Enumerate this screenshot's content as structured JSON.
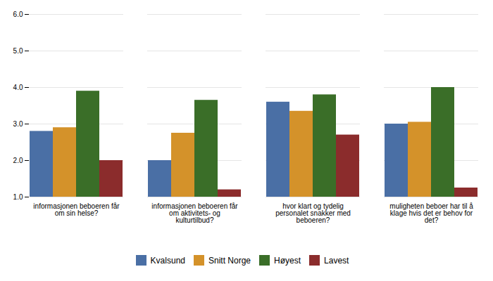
{
  "chart_data": {
    "type": "bar",
    "categories": [
      "informasjonen beboeren får\nom sin helse?",
      "informasjonen beboeren får\nom aktivitets- og\nkulturtilbud?",
      "hvor klart og tydelig\npersonalet snakker med\nbeboeren?",
      "muligheten beboer har til å\nklage hvis det er behov for\ndet?"
    ],
    "series": [
      {
        "name": "Kvalsund",
        "color": "#4a6fa5",
        "values": [
          2.8,
          2.0,
          3.6,
          3.0
        ]
      },
      {
        "name": "Snitt Norge",
        "color": "#d4922a",
        "values": [
          2.9,
          2.75,
          3.35,
          3.05
        ]
      },
      {
        "name": "Høyest",
        "color": "#3a6e28",
        "values": [
          3.9,
          3.65,
          3.8,
          4.0
        ]
      },
      {
        "name": "Lavest",
        "color": "#8b2c2c",
        "values": [
          2.0,
          1.2,
          2.7,
          1.25
        ]
      }
    ],
    "ylim": [
      1,
      6
    ],
    "yticks": [
      1,
      2,
      3,
      4,
      5,
      6
    ],
    "grid": true,
    "legend": "bottom"
  }
}
